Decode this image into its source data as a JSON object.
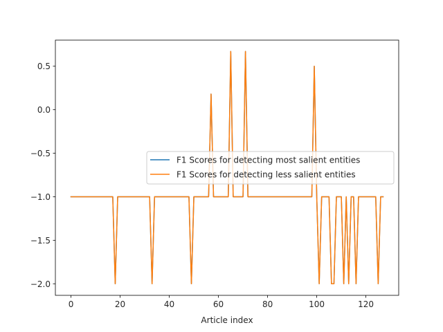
{
  "chart_data": {
    "type": "line",
    "title": "",
    "xlabel": "Article index",
    "ylabel": "",
    "xlim": [
      -6.35,
      133.35
    ],
    "ylim": [
      -2.133,
      0.8
    ],
    "xticks": [
      0,
      20,
      40,
      60,
      80,
      100,
      120
    ],
    "yticks": [
      -2.0,
      -1.5,
      -1.0,
      -0.5,
      0.0,
      0.5
    ],
    "ytick_labels": [
      "−2.0",
      "−1.5",
      "−1.0",
      "−0.5",
      "0.0",
      "0.5"
    ],
    "grid": false,
    "legend_position": "center-right",
    "x": [
      0,
      1,
      2,
      3,
      4,
      5,
      6,
      7,
      8,
      9,
      10,
      11,
      12,
      13,
      14,
      15,
      16,
      17,
      18,
      19,
      20,
      21,
      22,
      23,
      24,
      25,
      26,
      27,
      28,
      29,
      30,
      31,
      32,
      33,
      34,
      35,
      36,
      37,
      38,
      39,
      40,
      41,
      42,
      43,
      44,
      45,
      46,
      47,
      48,
      49,
      50,
      51,
      52,
      53,
      54,
      55,
      56,
      57,
      58,
      59,
      60,
      61,
      62,
      63,
      64,
      65,
      66,
      67,
      68,
      69,
      70,
      71,
      72,
      73,
      74,
      75,
      76,
      77,
      78,
      79,
      80,
      81,
      82,
      83,
      84,
      85,
      86,
      87,
      88,
      89,
      90,
      91,
      92,
      93,
      94,
      95,
      96,
      97,
      98,
      99,
      100,
      101,
      102,
      103,
      104,
      105,
      106,
      107,
      108,
      109,
      110,
      111,
      112,
      113,
      114,
      115,
      116,
      117,
      118,
      119,
      120,
      121,
      122,
      123,
      124,
      125,
      126,
      127
    ],
    "series": [
      {
        "name": "F1 Scores for detecting most salient entities",
        "color": "#1f77b4",
        "values": [
          -1,
          -1,
          -1,
          -1,
          -1,
          -1,
          -1,
          -1,
          -1,
          -1,
          -1,
          -1,
          -1,
          -1,
          -1,
          -1,
          -1,
          -1,
          -2,
          -1,
          -1,
          -1,
          -1,
          -1,
          -1,
          -1,
          -1,
          -1,
          -1,
          -1,
          -1,
          -1,
          -1,
          -2,
          -1,
          -1,
          -1,
          -1,
          -1,
          -1,
          -1,
          -1,
          -1,
          -1,
          -1,
          -1,
          -1,
          -1,
          -1,
          -2,
          -1,
          -1,
          -1,
          -1,
          -1,
          -1,
          -1,
          0.18,
          -1,
          -1,
          -1,
          -1,
          -1,
          -1,
          -1,
          0.67,
          -1,
          -1,
          -1,
          -1,
          -1,
          0.67,
          -1,
          -1,
          -1,
          -1,
          -1,
          -1,
          -1,
          -1,
          -1,
          -1,
          -1,
          -1,
          -1,
          -1,
          -1,
          -1,
          -1,
          -1,
          -1,
          -1,
          -1,
          -1,
          -1,
          -1,
          -1,
          -1,
          -1,
          0.5,
          -1,
          -2,
          -1,
          -1,
          -1,
          -1,
          -2,
          -2,
          -1,
          -1,
          -1,
          -2,
          -1,
          -2,
          -1,
          -1,
          -2,
          -1,
          -1,
          -1,
          -1,
          -1,
          -1,
          -1,
          -1,
          -2,
          -1,
          -1
        ]
      },
      {
        "name": "F1 Scores for detecting less salient entities",
        "color": "#ff7f0e",
        "values": [
          -1,
          -1,
          -1,
          -1,
          -1,
          -1,
          -1,
          -1,
          -1,
          -1,
          -1,
          -1,
          -1,
          -1,
          -1,
          -1,
          -1,
          -1,
          -2,
          -1,
          -1,
          -1,
          -1,
          -1,
          -1,
          -1,
          -1,
          -1,
          -1,
          -1,
          -1,
          -1,
          -1,
          -2,
          -1,
          -1,
          -1,
          -1,
          -1,
          -1,
          -1,
          -1,
          -1,
          -1,
          -1,
          -1,
          -1,
          -1,
          -1,
          -2,
          -1,
          -1,
          -1,
          -1,
          -1,
          -1,
          -1,
          0.18,
          -1,
          -1,
          -1,
          -1,
          -1,
          -1,
          -1,
          0.67,
          -1,
          -1,
          -1,
          -1,
          -1,
          0.67,
          -1,
          -1,
          -1,
          -1,
          -1,
          -1,
          -1,
          -1,
          -1,
          -1,
          -1,
          -1,
          -1,
          -1,
          -1,
          -1,
          -1,
          -1,
          -1,
          -1,
          -1,
          -1,
          -1,
          -1,
          -1,
          -1,
          -1,
          0.5,
          -1,
          -2,
          -1,
          -1,
          -1,
          -1,
          -2,
          -2,
          -1,
          -1,
          -1,
          -2,
          -1,
          -2,
          -1,
          -1,
          -2,
          -1,
          -1,
          -1,
          -1,
          -1,
          -1,
          -1,
          -1,
          -2,
          -1,
          -1
        ]
      }
    ]
  }
}
